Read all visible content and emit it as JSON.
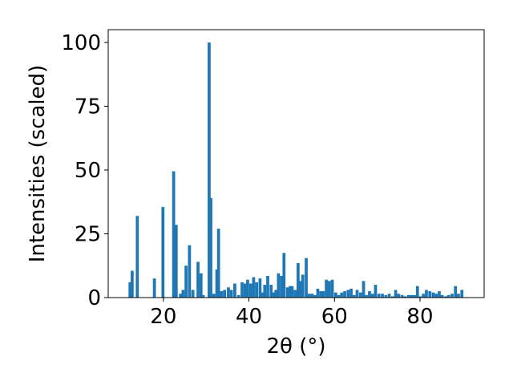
{
  "chart_data": {
    "type": "bar",
    "xlabel": "2θ (°)",
    "ylabel": "Intensities (scaled)",
    "xlim": [
      7.1,
      95.0
    ],
    "ylim": [
      0,
      105
    ],
    "xticks": [
      20,
      40,
      60,
      80
    ],
    "yticks": [
      0,
      25,
      50,
      75,
      100
    ],
    "bar_width": 0.7,
    "color": "#1f77b4",
    "grid": false,
    "x": [
      12.2,
      12.7,
      13.9,
      17.9,
      19.9,
      22.4,
      23.0,
      24.0,
      24.6,
      25.3,
      26.1,
      26.9,
      28.1,
      28.8,
      29.3,
      30.7,
      31.1,
      31.8,
      32.5,
      32.9,
      33.6,
      34.3,
      35.2,
      35.9,
      36.7,
      37.6,
      38.4,
      39.1,
      39.7,
      40.4,
      41.1,
      41.8,
      42.6,
      43.1,
      43.7,
      44.4,
      45.2,
      45.8,
      46.3,
      46.9,
      47.6,
      48.2,
      49.0,
      49.6,
      50.1,
      50.8,
      51.5,
      52.0,
      52.6,
      53.4,
      54.1,
      54.8,
      55.5,
      56.1,
      56.8,
      57.4,
      58.1,
      58.8,
      59.5,
      60.3,
      61.0,
      61.7,
      62.4,
      63.2,
      63.9,
      64.6,
      65.3,
      66.1,
      66.8,
      67.5,
      68.2,
      68.9,
      69.6,
      70.4,
      71.2,
      72.0,
      72.8,
      73.6,
      74.3,
      75.0,
      75.8,
      76.5,
      77.3,
      78.0,
      78.7,
      79.4,
      80.1,
      80.8,
      81.5,
      82.3,
      83.1,
      83.8,
      84.5,
      85.2,
      86.0,
      86.7,
      87.5,
      88.3,
      89.0,
      89.8
    ],
    "values": [
      6,
      10.5,
      32,
      7.5,
      35.5,
      49.5,
      28.5,
      1.5,
      3,
      12.5,
      20.5,
      3,
      14,
      9.5,
      1,
      100,
      39,
      1.5,
      11,
      27,
      2.5,
      3,
      4,
      3,
      5.5,
      1,
      6,
      5.5,
      7,
      5.5,
      8,
      6,
      7.5,
      2,
      5,
      8.5,
      5,
      2,
      3,
      9.5,
      8.5,
      17.5,
      4,
      4.5,
      4.5,
      3,
      13.5,
      6.5,
      9,
      15.5,
      1.5,
      1.5,
      1,
      3.5,
      2.5,
      2.5,
      7,
      6.5,
      7,
      2,
      1,
      2,
      2.5,
      3,
      3.5,
      1,
      3,
      2,
      6.5,
      1,
      2.5,
      1.5,
      5,
      1.5,
      1.5,
      1,
      1.5,
      0.5,
      3,
      1.5,
      1,
      0.5,
      1,
      1,
      1,
      4.5,
      0.5,
      1.5,
      3,
      2.5,
      2,
      1.5,
      2.5,
      1,
      0.5,
      1,
      1.5,
      4.5,
      1.5,
      3
    ]
  }
}
